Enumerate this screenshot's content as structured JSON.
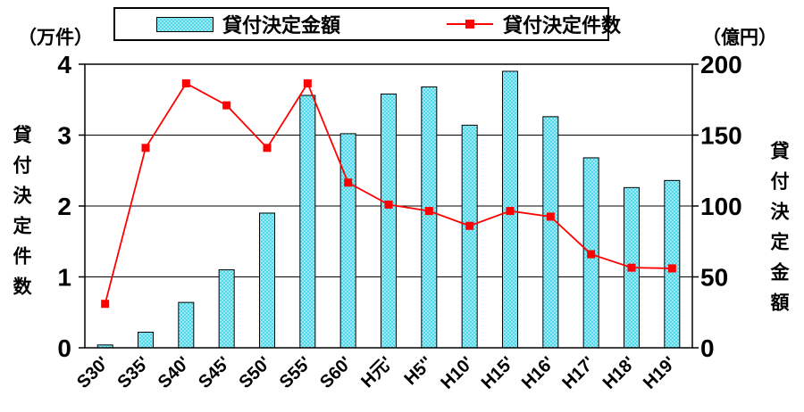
{
  "header": {
    "left_unit": "（万件）",
    "right_unit": "（億円）"
  },
  "legend": {
    "items": [
      {
        "label": "貸付決定金額",
        "type": "bar"
      },
      {
        "label": "貸付決定件数",
        "type": "line"
      }
    ]
  },
  "axes": {
    "left_title": "貸付決定件数",
    "right_title": "貸付決定金額"
  },
  "chart_data": {
    "type": "bar",
    "subtype": "bar+line dual axis",
    "categories": [
      "S30'",
      "S35'",
      "S40'",
      "S45'",
      "S50'",
      "S55'",
      "S60'",
      "H元'",
      "H5''",
      "H10'",
      "H15'",
      "H16'",
      "H17'",
      "H18'",
      "H19'"
    ],
    "series": [
      {
        "name": "貸付決定金額",
        "type": "bar",
        "axis": "right",
        "unit": "億円",
        "values": [
          2,
          11,
          32,
          55,
          95,
          178,
          151,
          179,
          184,
          157,
          195,
          163,
          134,
          113,
          118
        ]
      },
      {
        "name": "貸付決定件数",
        "type": "line",
        "axis": "left",
        "unit": "万件",
        "values": [
          0.62,
          2.82,
          3.73,
          3.42,
          2.82,
          3.73,
          2.33,
          2.02,
          1.93,
          1.72,
          1.93,
          1.85,
          1.32,
          1.13,
          1.12
        ]
      }
    ],
    "left_axis": {
      "label": "貸付決定件数",
      "unit": "（万件）",
      "min": 0,
      "max": 4,
      "step": 1,
      "ticks": [
        0,
        1,
        2,
        3,
        4
      ]
    },
    "right_axis": {
      "label": "貸付決定金額",
      "unit": "（億円）",
      "min": 0,
      "max": 200,
      "step": 50,
      "ticks": [
        0,
        50,
        100,
        150,
        200
      ]
    },
    "grid": true,
    "legend_position": "top",
    "colors": {
      "bar": "#4FD8EA",
      "line": "#FF0000",
      "grid": "#000000"
    }
  }
}
